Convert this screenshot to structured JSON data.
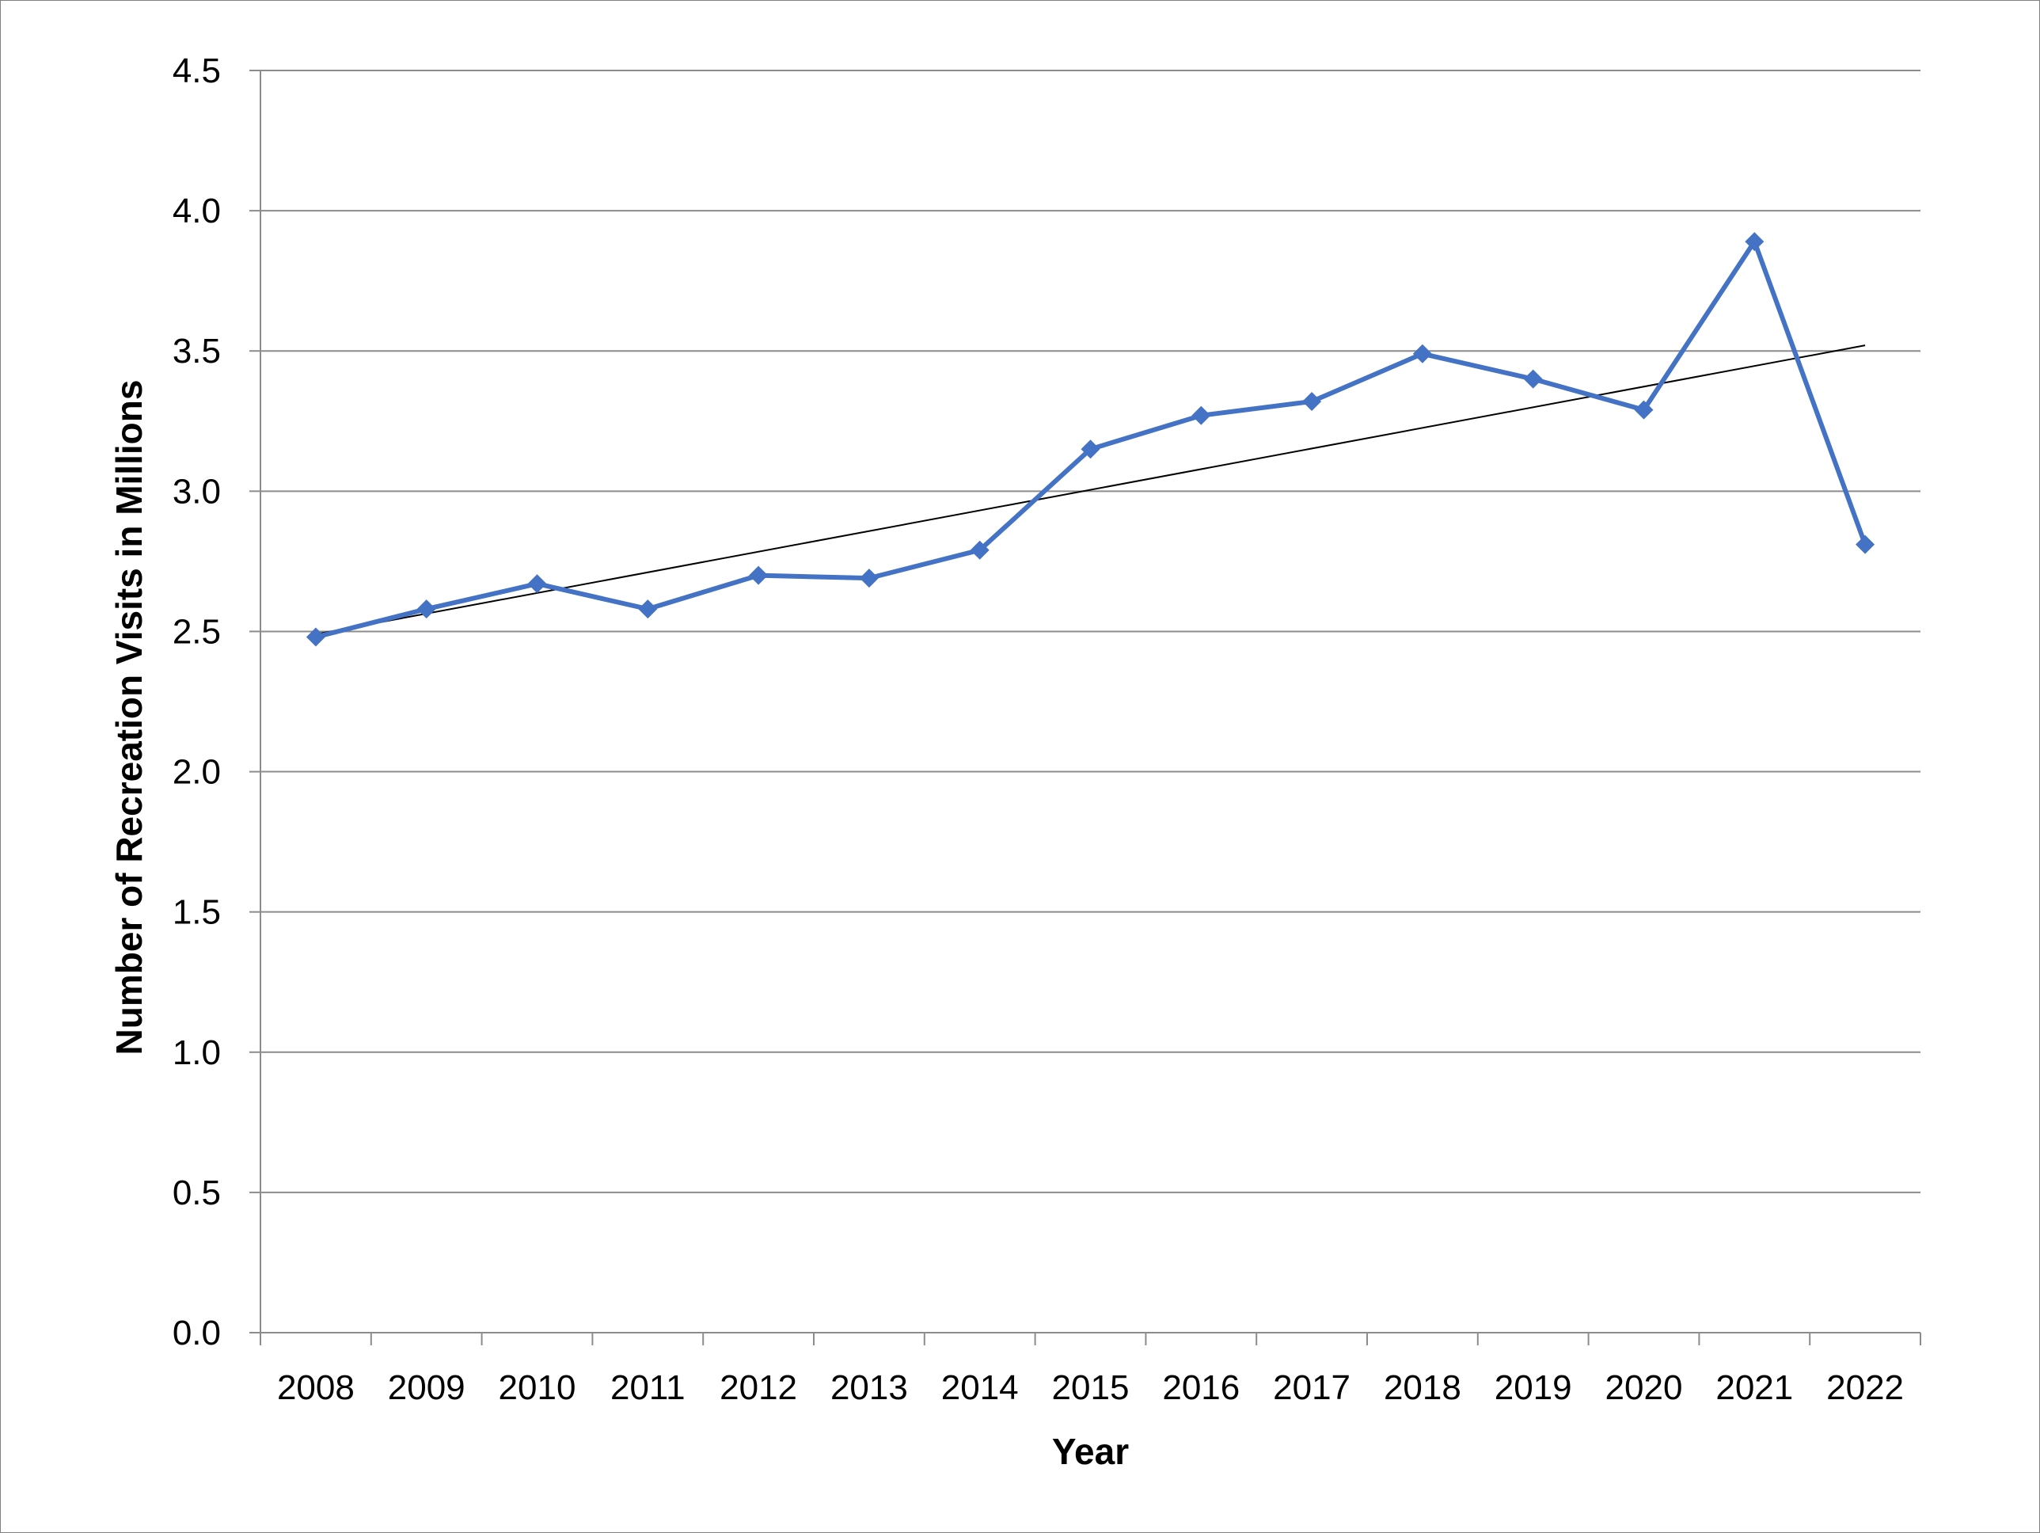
{
  "chart_data": {
    "type": "line",
    "title": "",
    "xlabel": "Year",
    "ylabel": "Number of Recreation Visits in Millions",
    "categories": [
      "2008",
      "2009",
      "2010",
      "2011",
      "2012",
      "2013",
      "2014",
      "2015",
      "2016",
      "2017",
      "2018",
      "2019",
      "2020",
      "2021",
      "2022"
    ],
    "series": [
      {
        "values": [
          2.48,
          2.58,
          2.67,
          2.58,
          2.7,
          2.69,
          2.79,
          3.15,
          3.27,
          3.32,
          3.49,
          3.4,
          3.29,
          3.89,
          2.81
        ],
        "color": "#4472C4",
        "marker": "diamond"
      }
    ],
    "trendline": {
      "type": "linear",
      "start": 2.49,
      "end": 3.52,
      "color": "#000000"
    },
    "ylim": [
      0,
      4.5
    ],
    "yticks": [
      "0.0",
      "0.5",
      "1.0",
      "1.5",
      "2.0",
      "2.5",
      "3.0",
      "3.5",
      "4.0",
      "4.5"
    ],
    "grid": true,
    "legend": "none"
  }
}
